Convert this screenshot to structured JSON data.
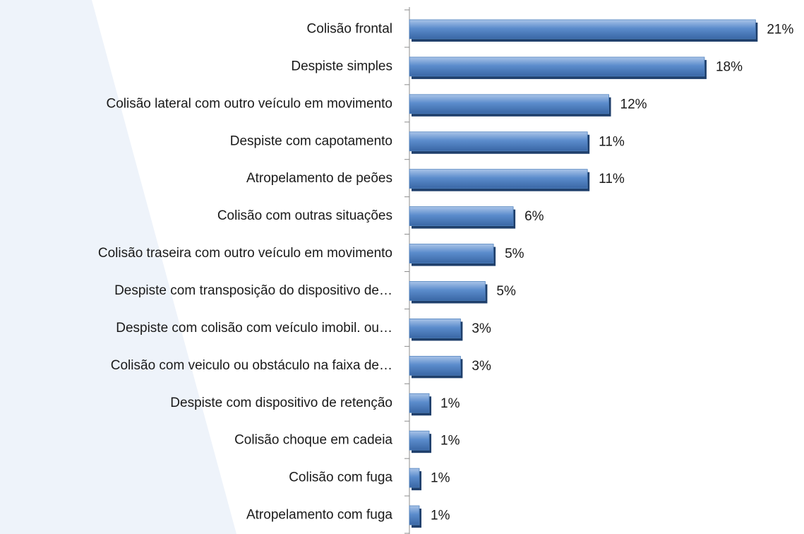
{
  "chart_data": {
    "type": "barh",
    "categories": [
      "Colisão frontal",
      "Despiste simples",
      "Colisão lateral com outro veículo em movimento",
      "Despiste com capotamento",
      "Atropelamento de peões",
      "Colisão com outras situações",
      "Colisão traseira com outro veículo em movimento",
      "Despiste com transposição do dispositivo de…",
      "Despiste com colisão com veículo imobil. ou…",
      "Colisão com veiculo ou obstáculo na faixa de…",
      "Despiste com dispositivo de retenção",
      "Colisão choque em cadeia",
      "Colisão com fuga",
      "Atropelamento com fuga"
    ],
    "values": [
      21,
      17.9,
      12.1,
      10.8,
      10.8,
      6.3,
      5.1,
      4.6,
      3.1,
      3.1,
      1.2,
      1.2,
      0.6,
      0.6
    ],
    "value_labels": [
      "21%",
      "18%",
      "12%",
      "11%",
      "11%",
      "6%",
      "5%",
      "5%",
      "3%",
      "3%",
      "1%",
      "1%",
      "1%",
      "1%"
    ],
    "color": "#4f81bd",
    "xlim": [
      0,
      21.5
    ]
  }
}
